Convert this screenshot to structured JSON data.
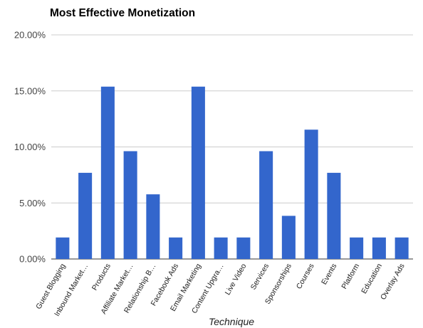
{
  "chart_data": {
    "type": "bar",
    "title": "Most Effective Monetization",
    "xlabel": "Technique",
    "ylabel": "",
    "ylim": [
      0,
      20
    ],
    "yticks": [
      0,
      5,
      10,
      15,
      20
    ],
    "ytick_labels": [
      "0.00%",
      "5.00%",
      "10.00%",
      "15.00%",
      "20.00%"
    ],
    "grid": true,
    "legend": "none",
    "bar_color": "#3366cc",
    "categories": [
      "Guest Blogging",
      "Inbound Market…",
      "Products",
      "Affiliate Market…",
      "Relationship B…",
      "Facebook Ads",
      "Email Marketing",
      "Content Upgra…",
      "Live Video",
      "Services",
      "Sponsorships",
      "Courses",
      "Events",
      "Platform",
      "Education",
      "Overlay Ads"
    ],
    "values": [
      1.92,
      7.69,
      15.38,
      9.62,
      5.77,
      1.92,
      15.38,
      1.92,
      1.92,
      9.62,
      3.85,
      11.54,
      7.69,
      1.92,
      1.92,
      1.92
    ]
  }
}
